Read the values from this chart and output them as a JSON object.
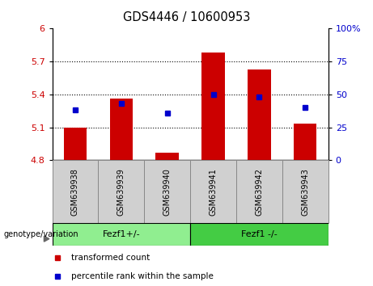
{
  "title": "GDS4446 / 10600953",
  "categories": [
    "GSM639938",
    "GSM639939",
    "GSM639940",
    "GSM639941",
    "GSM639942",
    "GSM639943"
  ],
  "bar_values": [
    5.1,
    5.36,
    4.87,
    5.78,
    5.63,
    5.13
  ],
  "blue_marker_values": [
    5.26,
    5.32,
    5.23,
    5.4,
    5.38,
    5.28
  ],
  "bar_color": "#cc0000",
  "marker_color": "#0000cc",
  "ylim_left": [
    4.8,
    6.0
  ],
  "ylim_right": [
    0,
    100
  ],
  "yticks_left": [
    4.8,
    5.1,
    5.4,
    5.7,
    6.0
  ],
  "yticks_right": [
    0,
    25,
    50,
    75,
    100
  ],
  "ytick_labels_left": [
    "4.8",
    "5.1",
    "5.4",
    "5.7",
    "6"
  ],
  "ytick_labels_right": [
    "0",
    "25",
    "50",
    "75",
    "100%"
  ],
  "hlines": [
    5.1,
    5.4,
    5.7
  ],
  "group1_label": "Fezf1+/-",
  "group2_label": "Fezf1 -/-",
  "group1_color": "#90ee90",
  "group2_color": "#44cc44",
  "genotype_label": "genotype/variation",
  "legend_label1": "transformed count",
  "legend_label2": "percentile rank within the sample",
  "bar_width": 0.5,
  "bar_bottom": 4.8,
  "tick_label_color_left": "#cc0000",
  "tick_label_color_right": "#0000cc",
  "gray_box_color": "#d0d0d0",
  "gray_box_edge": "#888888"
}
